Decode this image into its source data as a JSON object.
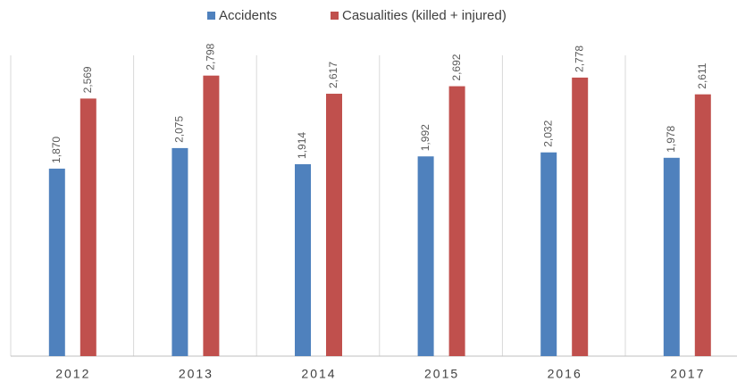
{
  "chart_data": {
    "type": "bar",
    "categories": [
      "2012",
      "2013",
      "2014",
      "2015",
      "2016",
      "2017"
    ],
    "series": [
      {
        "name": "Accidents",
        "color": "#4f81bd",
        "values": [
          1870,
          2075,
          1914,
          1992,
          2032,
          1978
        ],
        "value_labels": [
          "1,870",
          "2,075",
          "1,914",
          "1,992",
          "2,032",
          "1,978"
        ]
      },
      {
        "name": "Casualities (killed + injured)",
        "color": "#c0504d",
        "values": [
          2569,
          2798,
          2617,
          2692,
          2778,
          2611
        ],
        "value_labels": [
          "2,569",
          "2,798",
          "2,617",
          "2,692",
          "2,778",
          "2,611"
        ]
      }
    ],
    "ylim": [
      0,
      3000
    ],
    "legend": "top"
  }
}
